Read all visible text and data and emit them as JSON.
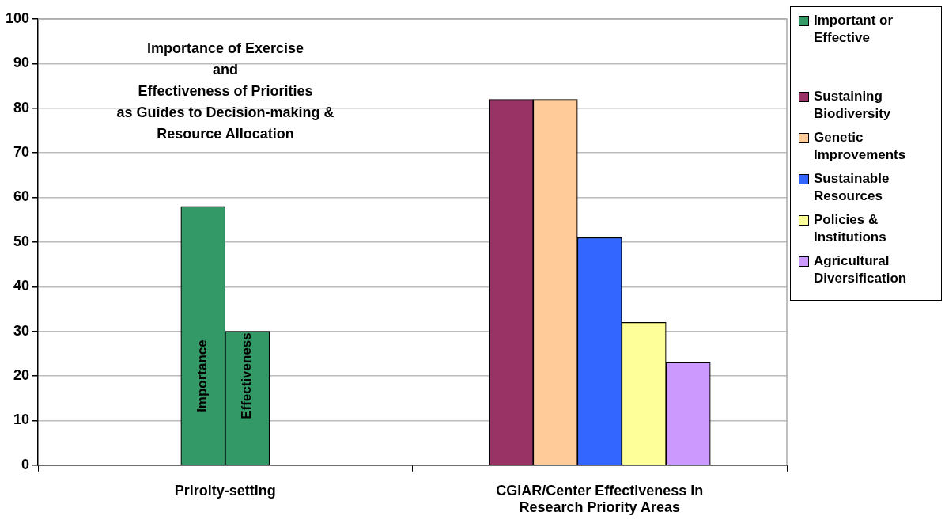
{
  "chart_data": {
    "type": "bar",
    "title": "Importance of Exercise\nand\nEffectiveness of Priorities\nas Guides to Decision-making &\nResource Allocation",
    "categories": [
      "Priroity-setting",
      "CGIAR/Center Effectiveness in Research Priority Areas"
    ],
    "series": [
      {
        "name": "Important or Effective",
        "color": "#339966",
        "values": [
          58,
          null
        ]
      },
      {
        "color": "#339966",
        "values": [
          30,
          null
        ]
      },
      {
        "name": "Sustaining Biodiversity",
        "color": "#993366",
        "values": [
          null,
          82
        ]
      },
      {
        "name": "Genetic Improvements",
        "color": "#ffcc99",
        "values": [
          null,
          82
        ]
      },
      {
        "name": "Sustainable Resources",
        "color": "#3366ff",
        "values": [
          null,
          51
        ]
      },
      {
        "name": "Policies & Institutions",
        "color": "#ffff99",
        "values": [
          null,
          32
        ]
      },
      {
        "name": "Agricultural Diversification",
        "color": "#cc99ff",
        "values": [
          null,
          23
        ]
      }
    ],
    "annotations": [
      {
        "text": "Importance",
        "x": "Priroity-setting",
        "y": 20
      },
      {
        "text": "Effectiveness",
        "x": "Priroity-setting",
        "y": 20
      }
    ],
    "ylim": [
      0,
      100
    ],
    "yticks": [
      0,
      10,
      20,
      30,
      40,
      50,
      60,
      70,
      80,
      90,
      100
    ],
    "grid": "y",
    "legend": "top right"
  }
}
